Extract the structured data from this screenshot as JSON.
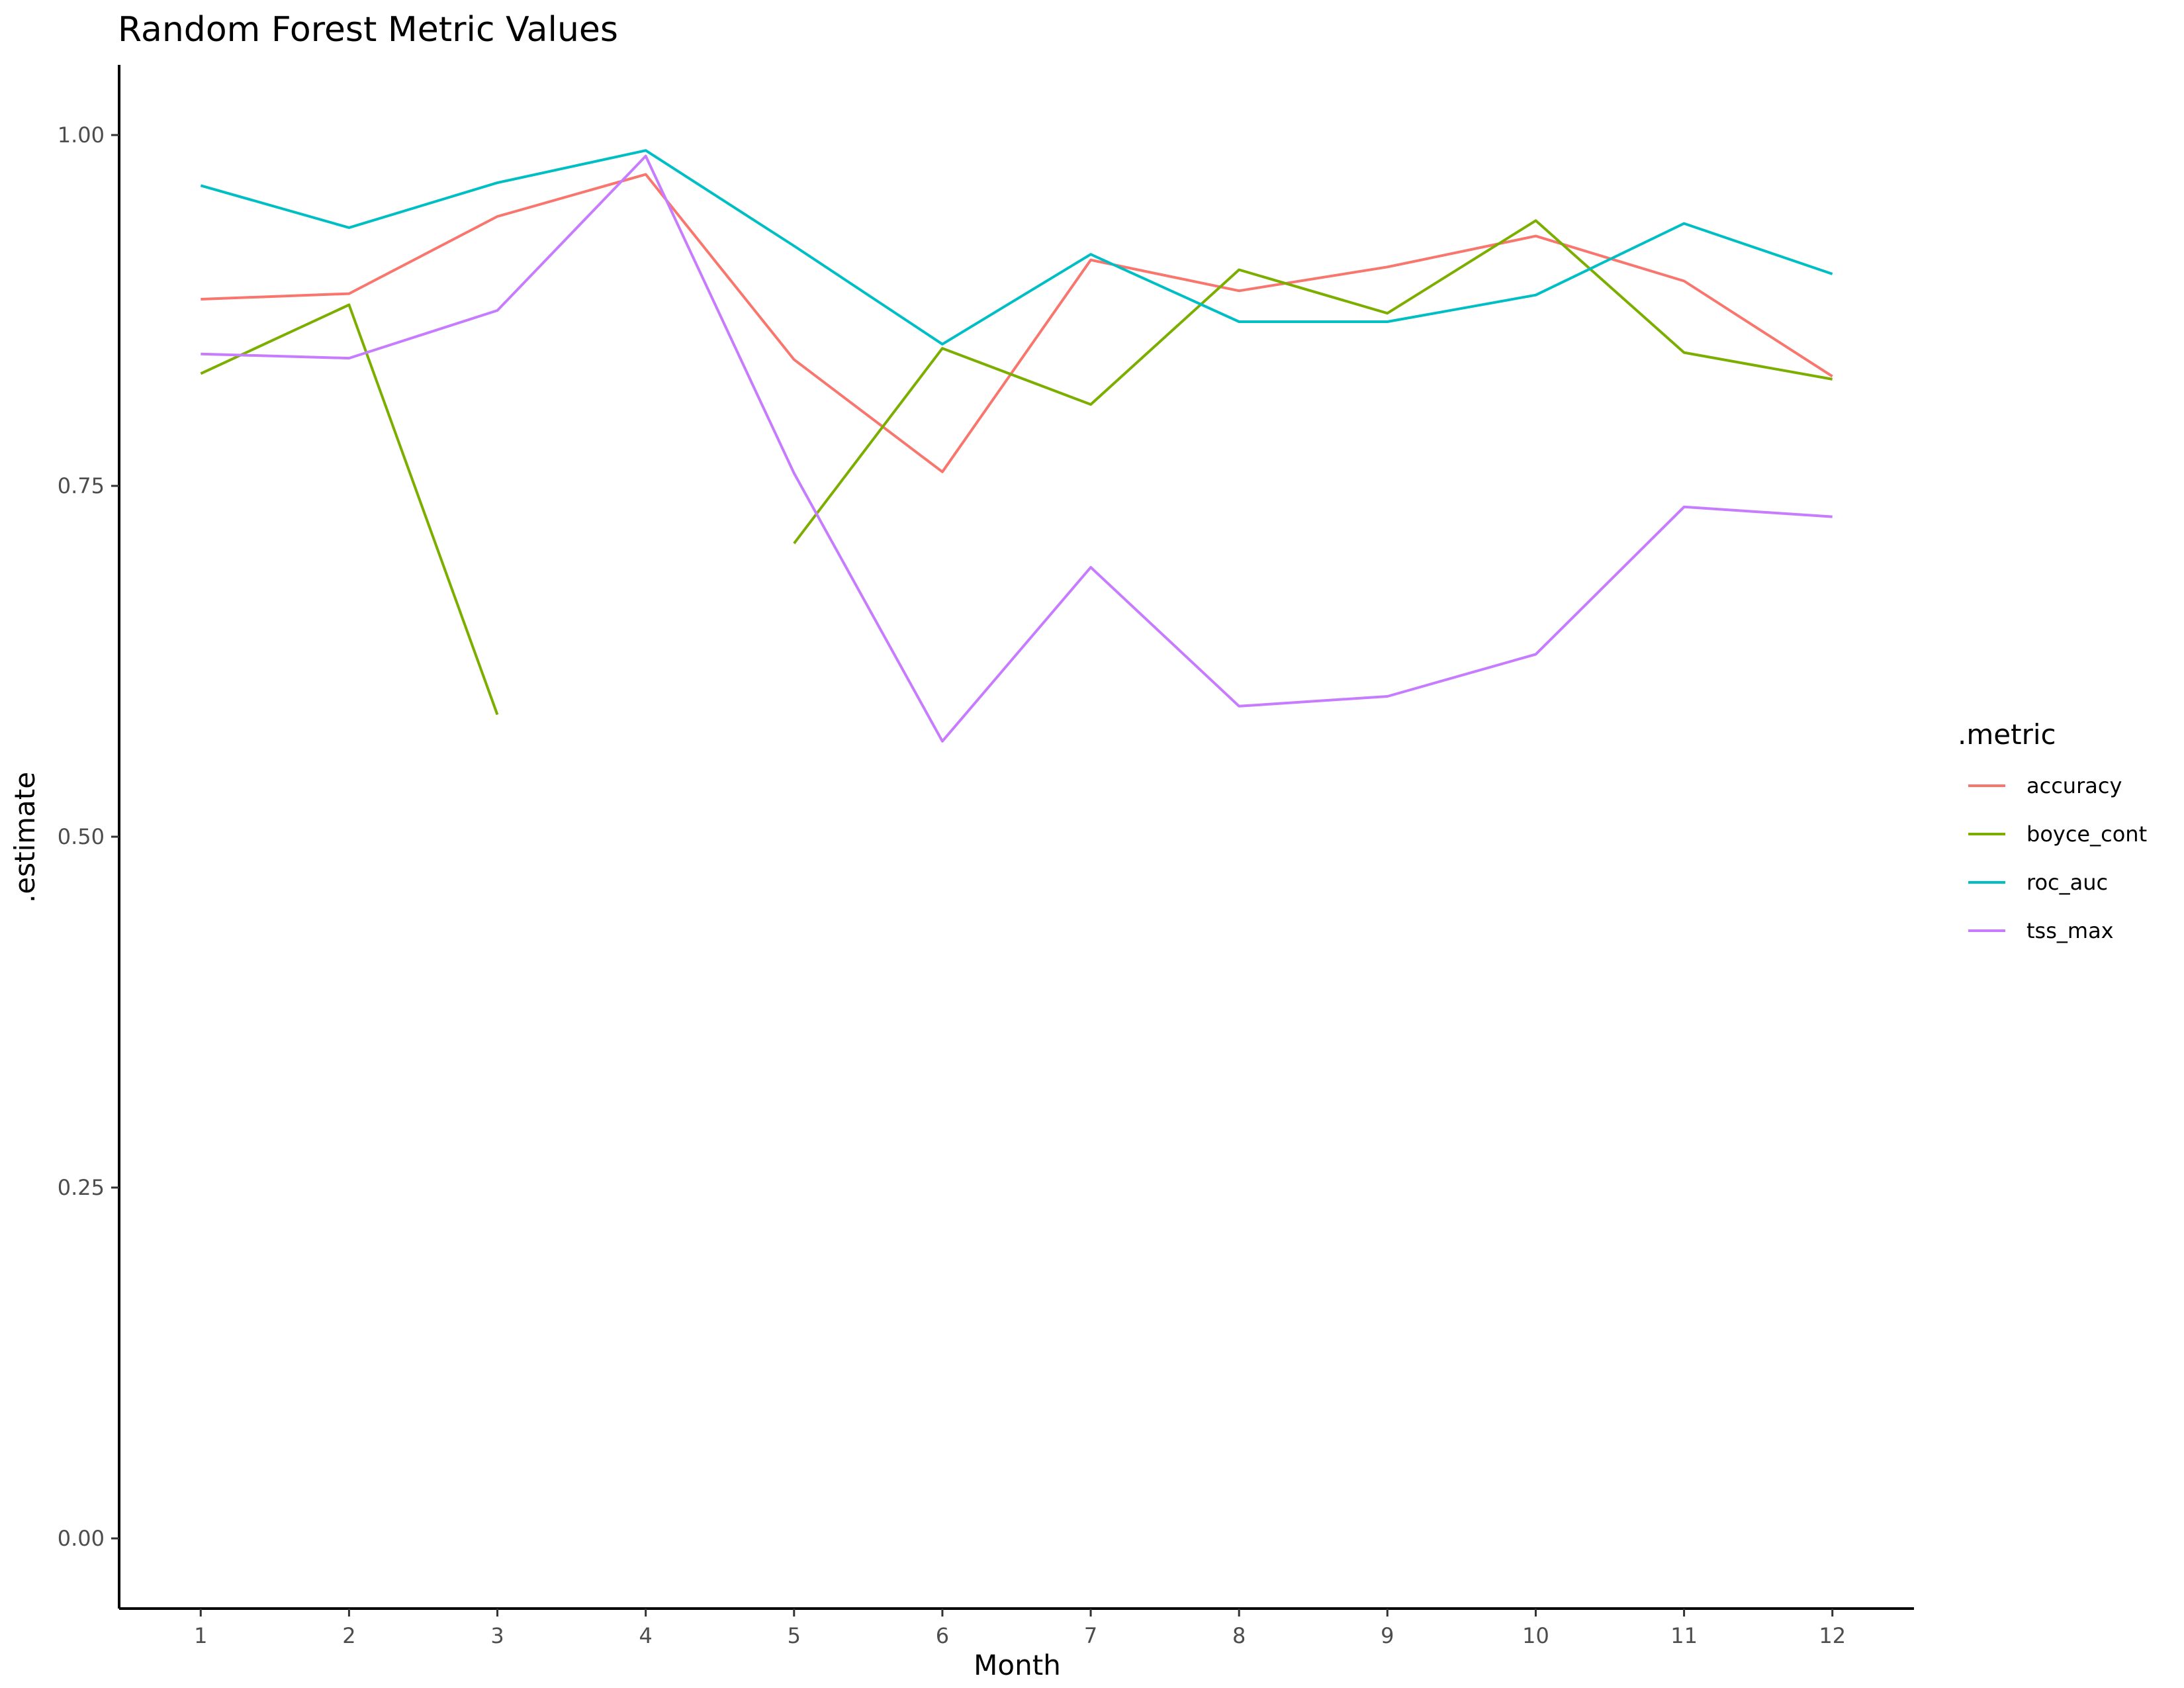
{
  "chart_data": {
    "type": "line",
    "title": "Random Forest Metric Values",
    "xlabel": "Month",
    "ylabel": ".estimate",
    "x": [
      1,
      2,
      3,
      4,
      5,
      6,
      7,
      8,
      9,
      10,
      11,
      12
    ],
    "xlim": [
      0.45,
      12.55
    ],
    "ylim": [
      -0.05,
      1.05
    ],
    "x_ticks": [
      "1",
      "2",
      "3",
      "4",
      "5",
      "6",
      "7",
      "8",
      "9",
      "10",
      "11",
      "12"
    ],
    "y_ticks": [
      0.0,
      0.25,
      0.5,
      0.75,
      1.0
    ],
    "y_tick_labels": [
      "0.00",
      "0.25",
      "0.50",
      "0.75",
      "1.00"
    ],
    "grid": false,
    "legend": {
      "title": ".metric",
      "position": "right"
    },
    "series": [
      {
        "name": "accuracy",
        "color": "#F8766D",
        "values": [
          0.883,
          0.887,
          0.942,
          0.972,
          0.84,
          0.76,
          0.911,
          0.889,
          0.906,
          0.928,
          0.896,
          0.828
        ]
      },
      {
        "name": "boyce_cont",
        "color": "#7CAE00",
        "values": [
          0.83,
          0.879,
          0.587,
          null,
          0.709,
          0.848,
          0.808,
          0.904,
          0.873,
          0.939,
          0.845,
          0.826
        ]
      },
      {
        "name": "roc_auc",
        "color": "#00BFC4",
        "values": [
          0.964,
          0.934,
          0.966,
          0.989,
          0.921,
          0.851,
          0.915,
          0.867,
          0.867,
          0.886,
          0.937,
          0.901
        ]
      },
      {
        "name": "tss_max",
        "color": "#C77CFF",
        "values": [
          0.844,
          0.841,
          0.875,
          0.985,
          0.759,
          0.568,
          0.692,
          0.593,
          0.6,
          0.63,
          0.735,
          0.728
        ]
      }
    ]
  }
}
